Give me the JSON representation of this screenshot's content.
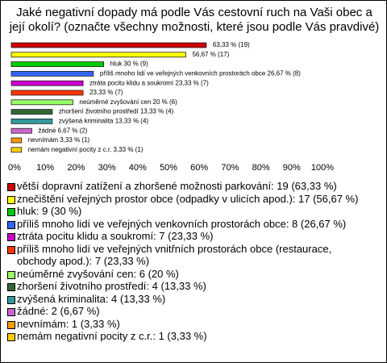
{
  "chart_data": {
    "type": "bar",
    "title": "Jaké negativní dopady má podle Vás cestovní ruch na Vaši obec a její okolí? (označte všechny možnosti, které jsou podle Vás pravdivé)",
    "categories": [
      "větší dopravní zatížení a zhoršené možnosti parkování: 19 (63,33 %)",
      "znečištění veřejných prostor obce (odpadky v ulicích apod.): 17 (56,67 %)",
      "hluk: 9 (30 %)",
      "příliš mnoho lidí ve veřejných venkovních prostorách obce: 8 (26,67 %)",
      "ztráta pocitu klidu a soukromí: 7 (23,33 %)",
      "příliš mnoho lidí ve veřejných vnitřních prostorách obce (restaurace, obchody apod.): 7 (23,33 %)",
      "neúměrné zvyšování cen: 6 (20 %)",
      "zhoršení životního prostředí: 4 (13,33 %)",
      "zvýšená kriminalita: 4 (13,33 %)",
      "žádné: 2 (6,67 %)",
      "nevnímám: 1 (3,33 %)",
      "nemám negativní pocity z c.r.: 1 (3,33 %)"
    ],
    "values": [
      63.33,
      56.67,
      30,
      26.67,
      23.33,
      23.33,
      20,
      13.33,
      13.33,
      6.67,
      3.33,
      3.33
    ],
    "value_labels": [
      "63,33 % (19)",
      "56,67 % (17)",
      "hluk 30 % (9)",
      "příliš mnoho lidí ve veřejných venkovních prostorách obce 26,67 % (8)",
      "ztráta pocitu klidu a soukromí 23,33 % (7)",
      "23,33 % (7)",
      "neúměrné zvyšování cen 20 % (6)",
      "zhoršení životního prostředí 13,33 % (4)",
      "zvýšená kriminalita 13,33 % (4)",
      "žádné 6,67 % (2)",
      "nevnímám 3,33 % (1)",
      "nemám negativní pocity z c.r. 3,33 % (1)"
    ],
    "colors": [
      "#cc0000",
      "#ffff00",
      "#00cc00",
      "#3366ff",
      "#cc00cc",
      "#ff3300",
      "#99ff66",
      "#336633",
      "#339999",
      "#cc66cc",
      "#ff9900",
      "#ffcc00"
    ],
    "xlim": [
      0,
      100
    ],
    "xticks": [
      {
        "value": 0,
        "label": "0%"
      },
      {
        "value": 10,
        "label": "10%"
      },
      {
        "value": 20,
        "label": "20%"
      },
      {
        "value": 30,
        "label": "30%"
      },
      {
        "value": 40,
        "label": "40%"
      },
      {
        "value": 50,
        "label": "50%"
      },
      {
        "value": 60,
        "label": "60%"
      },
      {
        "value": 70,
        "label": "70%"
      },
      {
        "value": 80,
        "label": "80%"
      },
      {
        "value": 90,
        "label": "90%"
      },
      {
        "value": 100,
        "label": "100%"
      }
    ],
    "grid": false
  }
}
